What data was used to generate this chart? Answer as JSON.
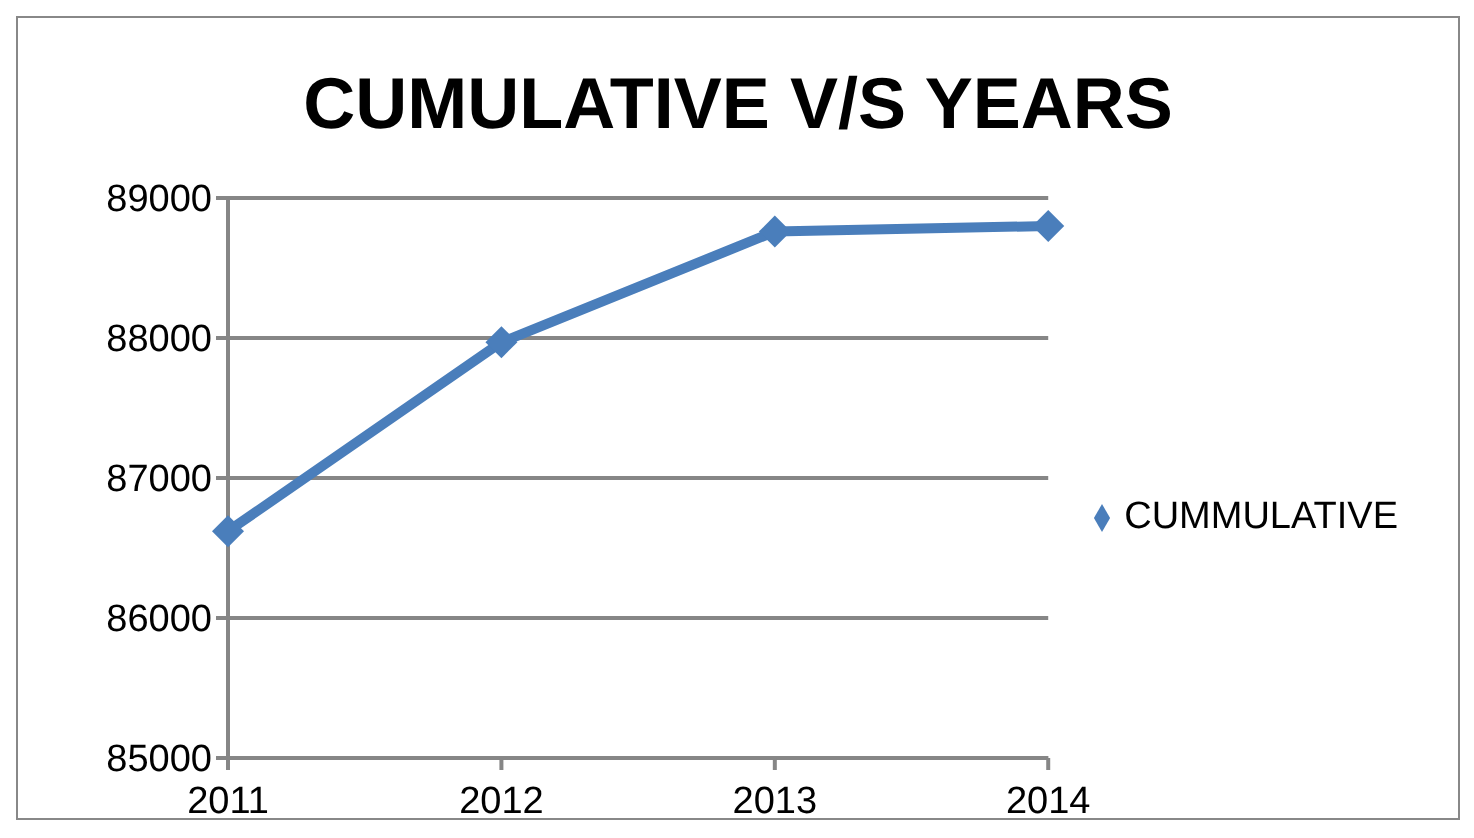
{
  "chart_data": {
    "type": "line",
    "title": "CUMULATIVE V/S YEARS",
    "categories": [
      "2011",
      "2012",
      "2013",
      "2014"
    ],
    "series": [
      {
        "name": "CUMMULATIVE",
        "color": "#4a7ebb",
        "values": [
          86620,
          87970,
          88760,
          88800
        ]
      }
    ],
    "ylim": [
      85000,
      89000
    ],
    "yticks": [
      85000,
      86000,
      87000,
      88000,
      89000
    ],
    "grid": "y",
    "legend": "right",
    "marker": "diamond",
    "line_style": "solid"
  }
}
